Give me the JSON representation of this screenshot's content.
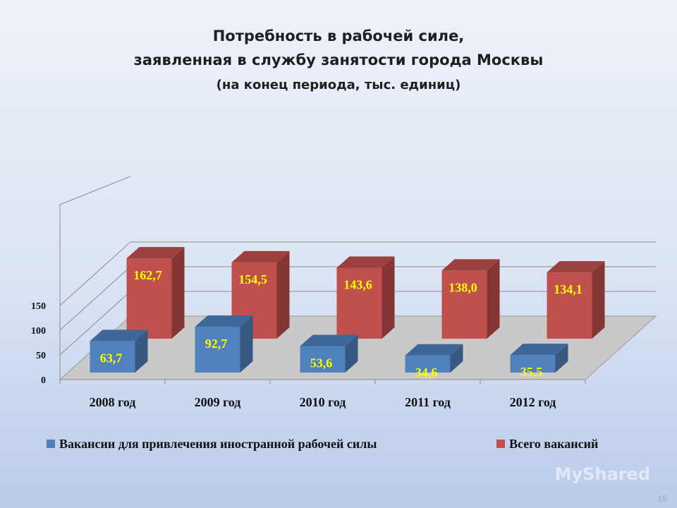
{
  "title": {
    "line1": "Потребность в рабочей силе,",
    "line2": "заявленная в службу занятости города Москвы",
    "line3": "(на конец периода, тыс. единиц)"
  },
  "chart_data": {
    "type": "bar",
    "style": "3d-clustered-column",
    "categories": [
      "2008 год",
      "2009 год",
      "2010 год",
      "2011 год",
      "2012 год"
    ],
    "series": [
      {
        "name": "Вакансии для привлечения иностранной рабочей силы",
        "color": "#4f81bd",
        "values": [
          63.7,
          92.7,
          53.6,
          34.6,
          35.5
        ],
        "labels": [
          "63,7",
          "92,7",
          "53,6",
          "34,6",
          "35,5"
        ]
      },
      {
        "name": "Всего вакансий",
        "color": "#c0504d",
        "values": [
          162.7,
          154.5,
          143.6,
          138.0,
          134.1
        ],
        "labels": [
          "162,7",
          "154,5",
          "143,6",
          "138,0",
          "134,1"
        ]
      }
    ],
    "y_ticks": [
      "0",
      "50",
      "100",
      "150"
    ],
    "ylim": [
      0,
      150
    ],
    "grid": true,
    "legend": "bottom",
    "data_label_color": "#ffff00"
  },
  "watermark": "MyShared",
  "page_number": "15"
}
